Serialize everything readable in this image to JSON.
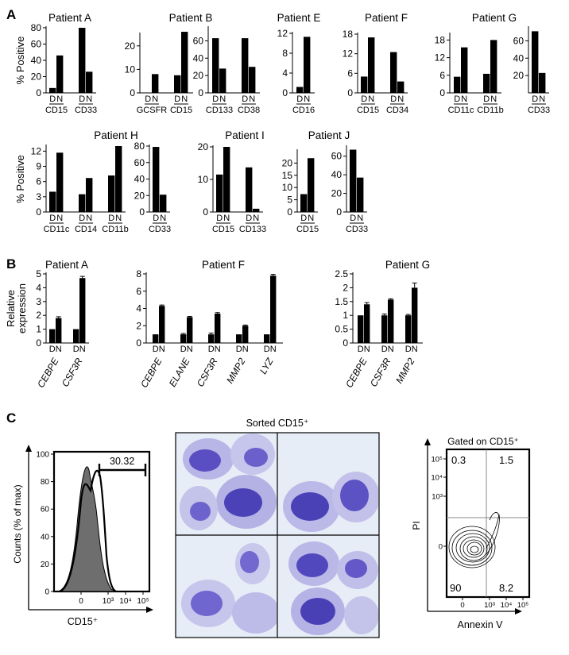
{
  "panel_labels": [
    "A",
    "B",
    "C"
  ],
  "colors": {
    "bar": "#000000",
    "histogram_fill": "#6e6e6e",
    "cell_stain": "#5a4fc2",
    "cell_background": "#e6edf6"
  },
  "panel_c": {
    "histogram": {
      "ylabel": "Counts (% of max)",
      "xlabel": "CD15⁺",
      "gate_value": "30.32",
      "yticks": [
        "0",
        "20",
        "40",
        "60",
        "80",
        "100"
      ],
      "xticks": [
        "0",
        "10³",
        "10⁴",
        "10⁵"
      ]
    },
    "micrograph": {
      "title": "Sorted CD15⁺"
    },
    "contour": {
      "title": "Gated on CD15⁺",
      "xlabel": "Annexin V",
      "ylabel": "PI",
      "quadrants": {
        "upper_left": "0.3",
        "upper_right": "1.5",
        "lower_left": "90",
        "lower_right": "8.2"
      },
      "xticks": [
        "0",
        "10³",
        "10⁴",
        "10⁵"
      ],
      "yticks": [
        "10⁵",
        "10⁴",
        "10³",
        "0"
      ]
    }
  },
  "chart_data": [
    {
      "type": "bar",
      "panel": "A",
      "title": "Patient A",
      "ylabel": "% Positive",
      "ylim": [
        0,
        80
      ],
      "yticks": [
        0,
        20,
        40,
        60,
        80
      ],
      "bar_labels": [
        "D",
        "N"
      ],
      "groups": [
        {
          "label": "CD15",
          "values": [
            6,
            46
          ]
        },
        {
          "label": "CD33",
          "values": [
            80,
            26
          ]
        }
      ]
    },
    {
      "type": "bar",
      "panel": "A",
      "title": "Patient B",
      "ylim": [
        0,
        25
      ],
      "yticks": [
        0,
        10,
        20
      ],
      "bar_labels": [
        "D",
        "N"
      ],
      "groups": [
        {
          "label": "GCSFR",
          "values": [
            0,
            8
          ]
        },
        {
          "label": "CD15",
          "values": [
            7.5,
            26
          ]
        }
      ]
    },
    {
      "type": "bar",
      "panel": "A",
      "title": "",
      "ylim": [
        0,
        75
      ],
      "yticks": [
        0,
        20,
        40,
        60
      ],
      "bar_labels": [
        "D",
        "N"
      ],
      "groups": [
        {
          "label": "CD133",
          "values": [
            63,
            28
          ]
        },
        {
          "label": "CD38",
          "values": [
            63,
            30
          ]
        }
      ]
    },
    {
      "type": "bar",
      "panel": "A",
      "title": "Patient E",
      "ylim": [
        0,
        12
      ],
      "yticks": [
        0,
        4,
        8,
        12
      ],
      "bar_labels": [
        "D",
        "N"
      ],
      "groups": [
        {
          "label": "CD16",
          "values": [
            1.2,
            11.3
          ]
        }
      ]
    },
    {
      "type": "bar",
      "panel": "A",
      "title": "Patient F",
      "ylim": [
        0,
        18
      ],
      "yticks": [
        0,
        6,
        12,
        18
      ],
      "bar_labels": [
        "D",
        "N"
      ],
      "groups": [
        {
          "label": "CD15",
          "values": [
            5,
            17
          ]
        },
        {
          "label": "CD34",
          "values": [
            12.5,
            3.5
          ]
        }
      ]
    },
    {
      "type": "bar",
      "panel": "A",
      "title": "Patient G",
      "ylim": [
        0,
        20
      ],
      "yticks": [
        0,
        6,
        12,
        18
      ],
      "bar_labels": [
        "D",
        "N"
      ],
      "groups": [
        {
          "label": "CD11c",
          "values": [
            5.5,
            15.5
          ]
        },
        {
          "label": "CD11b",
          "values": [
            6.5,
            18
          ]
        }
      ]
    },
    {
      "type": "bar",
      "panel": "A",
      "title": "",
      "ylim": [
        0,
        75
      ],
      "yticks": [
        20,
        40,
        60
      ],
      "bar_labels": [
        "D",
        "N"
      ],
      "groups": [
        {
          "label": "CD33",
          "values": [
            71,
            23
          ]
        }
      ]
    },
    {
      "type": "bar",
      "panel": "A",
      "title": "Patient H",
      "ylabel": "% Positive",
      "ylim": [
        0,
        13
      ],
      "yticks": [
        0,
        3,
        6,
        9,
        12
      ],
      "bar_labels": [
        "D",
        "N"
      ],
      "groups": [
        {
          "label": "CD11c",
          "values": [
            4,
            11.7
          ]
        },
        {
          "label": "CD14",
          "values": [
            3.5,
            6.7
          ]
        },
        {
          "label": "CD11b",
          "values": [
            7.2,
            13
          ]
        }
      ]
    },
    {
      "type": "bar",
      "panel": "A",
      "title": "",
      "ylim": [
        0,
        80
      ],
      "yticks": [
        0,
        20,
        40,
        60,
        80
      ],
      "bar_labels": [
        "D",
        "N"
      ],
      "groups": [
        {
          "label": "CD33",
          "values": [
            79,
            21
          ]
        }
      ]
    },
    {
      "type": "bar",
      "panel": "A",
      "title": "Patient I",
      "ylim": [
        0,
        20
      ],
      "yticks": [
        0,
        10,
        20
      ],
      "bar_labels": [
        "D",
        "N"
      ],
      "groups": [
        {
          "label": "CD15",
          "values": [
            11.5,
            20
          ]
        },
        {
          "label": "CD133",
          "values": [
            13.7,
            1
          ]
        }
      ]
    },
    {
      "type": "bar",
      "panel": "A",
      "title": "Patient J",
      "ylim": [
        0,
        25
      ],
      "yticks": [
        0,
        5,
        10,
        15,
        20
      ],
      "bar_labels": [
        "D",
        "N"
      ],
      "groups": [
        {
          "label": "CD15",
          "values": [
            7.3,
            22
          ]
        }
      ]
    },
    {
      "type": "bar",
      "panel": "A",
      "title": "",
      "ylim": [
        0,
        70
      ],
      "yticks": [
        0,
        20,
        40,
        60
      ],
      "bar_labels": [
        "D",
        "N"
      ],
      "groups": [
        {
          "label": "CD33",
          "values": [
            67,
            37
          ]
        }
      ]
    },
    {
      "type": "bar",
      "panel": "B",
      "title": "Patient A",
      "ylabel": "Relative expression",
      "ylim": [
        0,
        5
      ],
      "yticks": [
        0,
        1,
        2,
        3,
        4,
        5
      ],
      "bar_labels": [
        "D",
        "N"
      ],
      "italic_labels": true,
      "groups": [
        {
          "label": "CEBPE",
          "values": [
            1,
            1.8
          ],
          "errors": [
            0,
            0.1
          ]
        },
        {
          "label": "CSF3R",
          "values": [
            1,
            4.7
          ],
          "errors": [
            0,
            0.12
          ]
        }
      ]
    },
    {
      "type": "bar",
      "panel": "B",
      "title": "Patient F",
      "ylim": [
        0,
        8
      ],
      "yticks": [
        0,
        2,
        4,
        6,
        8
      ],
      "bar_labels": [
        "D",
        "N"
      ],
      "italic_labels": true,
      "groups": [
        {
          "label": "CEBPE",
          "values": [
            1,
            4.3
          ],
          "errors": [
            0,
            0.1
          ]
        },
        {
          "label": "ELANE",
          "values": [
            1,
            3
          ],
          "errors": [
            0.1,
            0.08
          ]
        },
        {
          "label": "CSF3R",
          "values": [
            1,
            3.4
          ],
          "errors": [
            0.15,
            0.12
          ]
        },
        {
          "label": "MMP2",
          "values": [
            1,
            2
          ],
          "errors": [
            0,
            0.08
          ]
        },
        {
          "label": "LYZ",
          "values": [
            1,
            7.8
          ],
          "errors": [
            0,
            0.15
          ]
        }
      ]
    },
    {
      "type": "bar",
      "panel": "B",
      "title": "Patient G",
      "ylim": [
        0,
        2.5
      ],
      "yticks": [
        0,
        0.5,
        1,
        1.5,
        2,
        2.5
      ],
      "bar_labels": [
        "D",
        "N"
      ],
      "italic_labels": true,
      "groups": [
        {
          "label": "CEBPE",
          "values": [
            1,
            1.4
          ],
          "errors": [
            0,
            0.06
          ]
        },
        {
          "label": "CSF3R",
          "values": [
            1,
            1.57
          ],
          "errors": [
            0.05,
            0.03
          ]
        },
        {
          "label": "MMP2",
          "values": [
            1,
            2
          ],
          "errors": [
            0.03,
            0.17
          ]
        }
      ]
    }
  ]
}
